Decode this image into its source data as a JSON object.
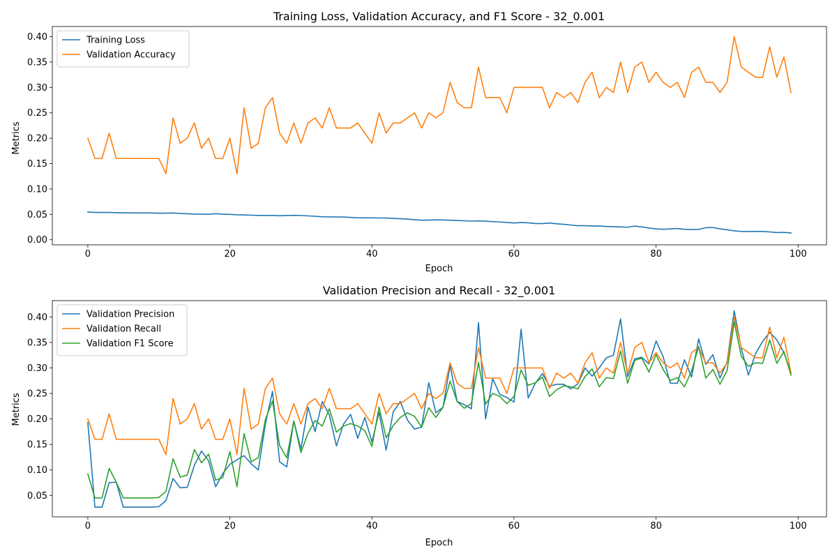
{
  "chart_data": [
    {
      "type": "line",
      "title": "Training Loss, Validation Accuracy, and F1 Score - 32_0.001",
      "xlabel": "Epoch",
      "ylabel": "Metrics",
      "xlim": [
        -5,
        104
      ],
      "ylim": [
        -0.01,
        0.42
      ],
      "xticks": [
        0,
        20,
        40,
        60,
        80,
        100
      ],
      "yticks": [
        0.0,
        0.05,
        0.1,
        0.15,
        0.2,
        0.25,
        0.3,
        0.35,
        0.4
      ],
      "ytick_labels": [
        "0.00",
        "0.05",
        "0.10",
        "0.15",
        "0.20",
        "0.25",
        "0.30",
        "0.35",
        "0.40"
      ],
      "grid": false,
      "legend": "top-left",
      "series": [
        {
          "name": "Training Loss",
          "color": "#1f77b4",
          "values": [
            0.0545,
            0.0538,
            0.0538,
            0.0538,
            0.0533,
            0.0531,
            0.0529,
            0.0528,
            0.0527,
            0.0527,
            0.0522,
            0.0524,
            0.0527,
            0.0518,
            0.0512,
            0.0506,
            0.0505,
            0.0502,
            0.0512,
            0.0503,
            0.05,
            0.0492,
            0.0488,
            0.0484,
            0.048,
            0.0478,
            0.0478,
            0.0473,
            0.0476,
            0.0481,
            0.0477,
            0.047,
            0.0462,
            0.0452,
            0.045,
            0.0449,
            0.0447,
            0.044,
            0.0431,
            0.0431,
            0.0431,
            0.0429,
            0.0428,
            0.042,
            0.0414,
            0.0406,
            0.0395,
            0.0385,
            0.0387,
            0.0392,
            0.039,
            0.0385,
            0.0378,
            0.0374,
            0.0367,
            0.0372,
            0.0365,
            0.0357,
            0.035,
            0.034,
            0.033,
            0.0339,
            0.0333,
            0.032,
            0.0318,
            0.033,
            0.0315,
            0.0305,
            0.029,
            0.0277,
            0.0278,
            0.027,
            0.0272,
            0.0262,
            0.0258,
            0.0253,
            0.0247,
            0.0268,
            0.0253,
            0.023,
            0.0215,
            0.0206,
            0.0213,
            0.0222,
            0.0205,
            0.0202,
            0.0203,
            0.0238,
            0.024,
            0.0215,
            0.0196,
            0.0175,
            0.0163,
            0.0162,
            0.0163,
            0.0163,
            0.0154,
            0.0141,
            0.0145,
            0.0134
          ]
        },
        {
          "name": "Validation Accuracy",
          "color": "#ff7f0e",
          "values": [
            0.2,
            0.16,
            0.16,
            0.21,
            0.16,
            0.16,
            0.16,
            0.16,
            0.16,
            0.16,
            0.16,
            0.13,
            0.24,
            0.19,
            0.2,
            0.23,
            0.18,
            0.2,
            0.16,
            0.16,
            0.2,
            0.13,
            0.26,
            0.18,
            0.19,
            0.26,
            0.28,
            0.21,
            0.19,
            0.23,
            0.19,
            0.23,
            0.24,
            0.22,
            0.26,
            0.22,
            0.22,
            0.22,
            0.23,
            0.21,
            0.19,
            0.25,
            0.21,
            0.23,
            0.23,
            0.24,
            0.25,
            0.22,
            0.25,
            0.24,
            0.25,
            0.31,
            0.27,
            0.26,
            0.26,
            0.34,
            0.28,
            0.28,
            0.28,
            0.25,
            0.3,
            0.3,
            0.3,
            0.3,
            0.3,
            0.26,
            0.29,
            0.28,
            0.29,
            0.27,
            0.31,
            0.33,
            0.28,
            0.3,
            0.29,
            0.35,
            0.29,
            0.34,
            0.35,
            0.31,
            0.33,
            0.31,
            0.3,
            0.31,
            0.28,
            0.33,
            0.34,
            0.31,
            0.31,
            0.29,
            0.31,
            0.4,
            0.34,
            0.33,
            0.32,
            0.32,
            0.38,
            0.32,
            0.36,
            0.29
          ]
        }
      ]
    },
    {
      "type": "line",
      "title": "Validation Precision and Recall - 32_0.001",
      "xlabel": "Epoch",
      "ylabel": "Metrics",
      "xlim": [
        -5,
        104
      ],
      "ylim": [
        0.008,
        0.432
      ],
      "xticks": [
        0,
        20,
        40,
        60,
        80,
        100
      ],
      "yticks": [
        0.05,
        0.1,
        0.15,
        0.2,
        0.25,
        0.3,
        0.35,
        0.4
      ],
      "ytick_labels": [
        "0.05",
        "0.10",
        "0.15",
        "0.20",
        "0.25",
        "0.30",
        "0.35",
        "0.40"
      ],
      "grid": false,
      "legend": "top-left",
      "series": [
        {
          "name": "Validation Precision",
          "color": "#1f77b4",
          "values": [
            0.193,
            0.027,
            0.027,
            0.075,
            0.076,
            0.027,
            0.027,
            0.027,
            0.027,
            0.027,
            0.028,
            0.04,
            0.083,
            0.065,
            0.066,
            0.109,
            0.137,
            0.118,
            0.067,
            0.093,
            0.111,
            0.12,
            0.128,
            0.112,
            0.1,
            0.19,
            0.254,
            0.116,
            0.106,
            0.196,
            0.141,
            0.223,
            0.175,
            0.234,
            0.208,
            0.147,
            0.19,
            0.209,
            0.162,
            0.203,
            0.155,
            0.213,
            0.139,
            0.214,
            0.234,
            0.198,
            0.18,
            0.184,
            0.271,
            0.212,
            0.223,
            0.305,
            0.234,
            0.228,
            0.22,
            0.389,
            0.2,
            0.279,
            0.248,
            0.242,
            0.233,
            0.376,
            0.241,
            0.27,
            0.289,
            0.264,
            0.268,
            0.268,
            0.259,
            0.269,
            0.3,
            0.284,
            0.3,
            0.32,
            0.325,
            0.396,
            0.283,
            0.318,
            0.321,
            0.308,
            0.353,
            0.322,
            0.27,
            0.27,
            0.316,
            0.282,
            0.357,
            0.307,
            0.326,
            0.28,
            0.312,
            0.412,
            0.338,
            0.286,
            0.328,
            0.352,
            0.37,
            0.355,
            0.33,
            0.29
          ]
        },
        {
          "name": "Validation Recall",
          "color": "#ff7f0e",
          "values": [
            0.2,
            0.16,
            0.16,
            0.21,
            0.16,
            0.16,
            0.16,
            0.16,
            0.16,
            0.16,
            0.16,
            0.13,
            0.24,
            0.19,
            0.2,
            0.23,
            0.18,
            0.2,
            0.16,
            0.16,
            0.2,
            0.13,
            0.26,
            0.18,
            0.19,
            0.26,
            0.28,
            0.21,
            0.19,
            0.23,
            0.19,
            0.23,
            0.24,
            0.22,
            0.26,
            0.22,
            0.22,
            0.22,
            0.23,
            0.21,
            0.19,
            0.25,
            0.21,
            0.23,
            0.23,
            0.24,
            0.25,
            0.22,
            0.25,
            0.24,
            0.25,
            0.31,
            0.27,
            0.26,
            0.26,
            0.34,
            0.28,
            0.28,
            0.28,
            0.25,
            0.3,
            0.3,
            0.3,
            0.3,
            0.3,
            0.26,
            0.29,
            0.28,
            0.29,
            0.27,
            0.31,
            0.33,
            0.28,
            0.3,
            0.29,
            0.35,
            0.29,
            0.34,
            0.35,
            0.31,
            0.33,
            0.31,
            0.3,
            0.31,
            0.28,
            0.33,
            0.34,
            0.31,
            0.31,
            0.29,
            0.31,
            0.4,
            0.34,
            0.33,
            0.32,
            0.32,
            0.38,
            0.32,
            0.36,
            0.29
          ]
        },
        {
          "name": "Validation F1 Score",
          "color": "#2ca02c",
          "values": [
            0.092,
            0.045,
            0.045,
            0.103,
            0.076,
            0.045,
            0.045,
            0.045,
            0.045,
            0.045,
            0.046,
            0.058,
            0.122,
            0.086,
            0.09,
            0.14,
            0.114,
            0.131,
            0.08,
            0.085,
            0.136,
            0.067,
            0.171,
            0.116,
            0.124,
            0.199,
            0.235,
            0.148,
            0.124,
            0.196,
            0.134,
            0.172,
            0.197,
            0.186,
            0.22,
            0.174,
            0.186,
            0.191,
            0.186,
            0.177,
            0.146,
            0.223,
            0.163,
            0.187,
            0.203,
            0.212,
            0.205,
            0.184,
            0.222,
            0.203,
            0.223,
            0.274,
            0.234,
            0.221,
            0.23,
            0.311,
            0.229,
            0.25,
            0.244,
            0.23,
            0.244,
            0.296,
            0.266,
            0.271,
            0.282,
            0.244,
            0.257,
            0.265,
            0.263,
            0.259,
            0.283,
            0.298,
            0.263,
            0.281,
            0.279,
            0.333,
            0.27,
            0.315,
            0.319,
            0.292,
            0.326,
            0.297,
            0.275,
            0.281,
            0.263,
            0.294,
            0.342,
            0.28,
            0.297,
            0.268,
            0.295,
            0.39,
            0.323,
            0.303,
            0.31,
            0.309,
            0.355,
            0.309,
            0.332,
            0.286
          ]
        }
      ]
    }
  ]
}
